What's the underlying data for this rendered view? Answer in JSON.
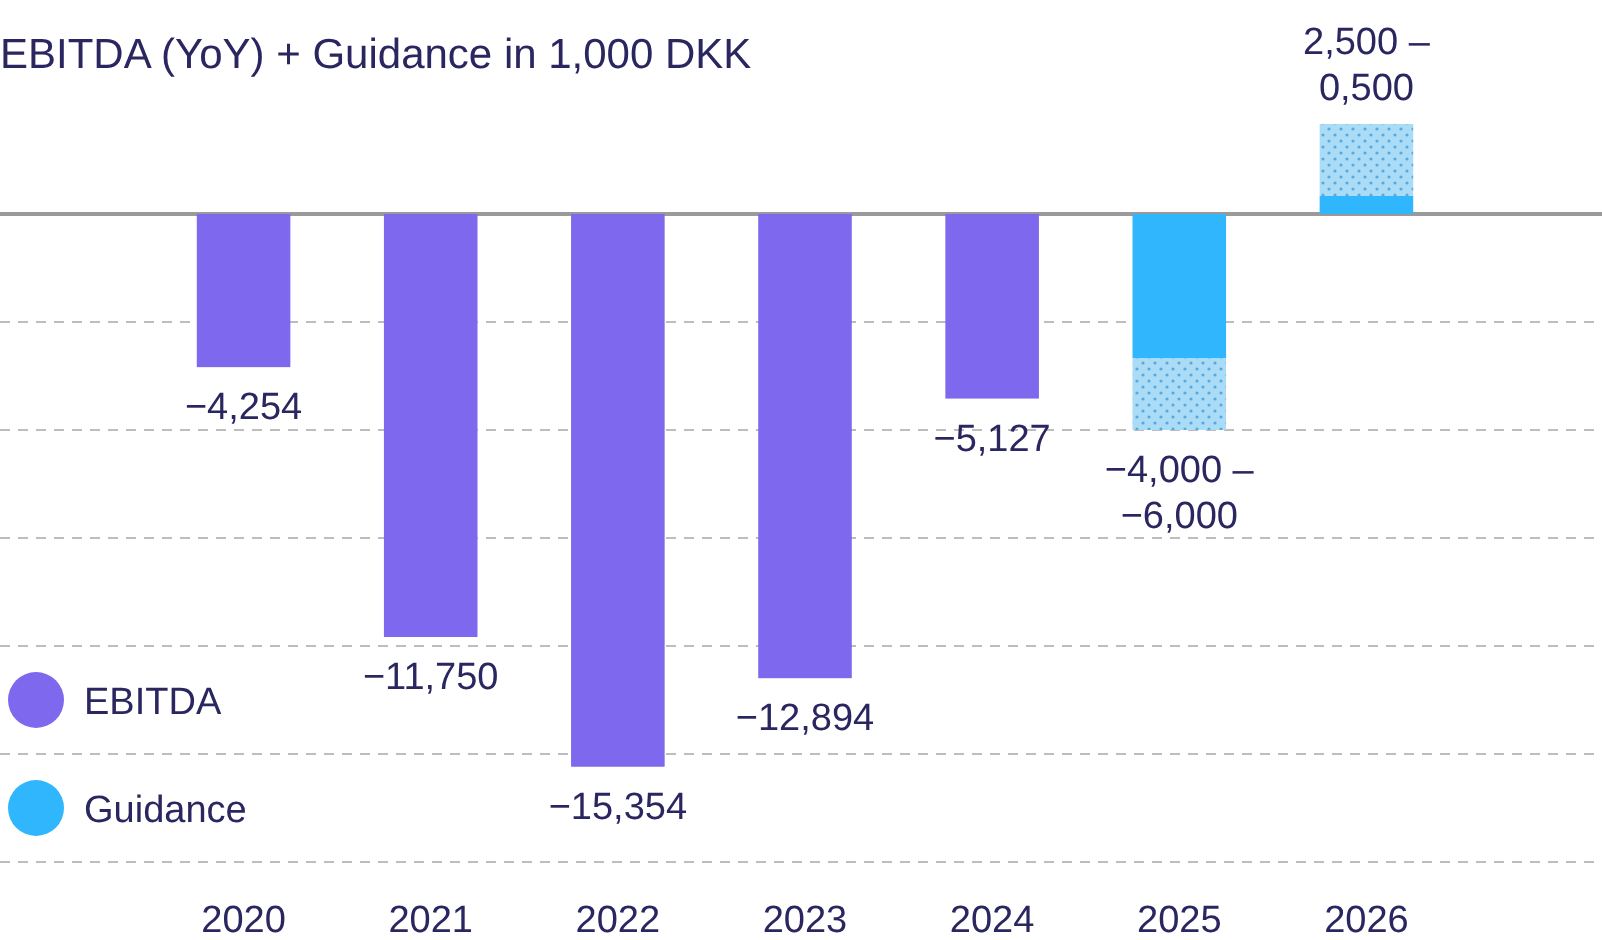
{
  "chart_data": {
    "type": "bar",
    "title": "EBITDA (YoY) + Guidance in 1,000 DKK",
    "categories": [
      "2020",
      "2021",
      "2022",
      "2023",
      "2024",
      "2025",
      "2026"
    ],
    "stacked": true,
    "series": [
      {
        "name": "EBITDA",
        "color": "#7d68ee",
        "values": [
          -4254,
          -11750,
          -15354,
          -12894,
          -5127,
          null,
          null
        ],
        "value_labels": [
          "−4,254",
          "−11,750",
          "−15,354",
          "−12,894",
          "−5,127",
          null,
          null
        ]
      },
      {
        "name": "Guidance",
        "color": "#30b6fc",
        "values": [
          null,
          null,
          null,
          null,
          null,
          -4000,
          500
        ]
      },
      {
        "color": "#aadcf8",
        "values": [
          null,
          null,
          null,
          null,
          null,
          -2000,
          2000
        ]
      }
    ],
    "annotations": [
      {
        "text": "−4,000 –\n−6,000",
        "x": "2025",
        "y": -6000
      },
      {
        "text": "2,500 –\n0,500",
        "x": "2026",
        "y": 2500
      }
    ],
    "yticks": [
      {
        "value": 0,
        "label": null
      },
      {
        "value": -3000,
        "label": null
      },
      {
        "value": -6000,
        "label": null
      },
      {
        "value": -9000,
        "label": null
      },
      {
        "value": -12000,
        "label": null
      },
      {
        "value": -15000,
        "label": null
      },
      {
        "value": -18000,
        "label": null
      }
    ],
    "tick_labels": "x",
    "grid": "y",
    "legend": "bottom left"
  }
}
